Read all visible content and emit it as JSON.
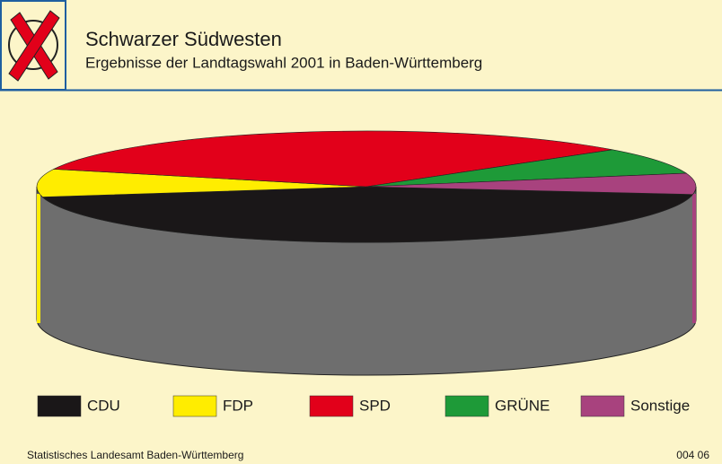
{
  "chart_data": {
    "type": "pie3d",
    "title": "Schwarzer Südwesten",
    "subtitle": "Ergebnisse der Landtagswahl 2001 in Baden-Württemberg",
    "categories": [
      "CDU",
      "FDP",
      "SPD",
      "GRÜNE",
      "Sonstige"
    ],
    "values": [
      44.8,
      8.1,
      33.3,
      7.7,
      6.1
    ],
    "colors": [
      "#1a1718",
      "#ffed00",
      "#e2001a",
      "#1e9a38",
      "#a8427e"
    ],
    "source": "Statistisches Landesamt Baden-Württemberg",
    "code": "004 06"
  }
}
